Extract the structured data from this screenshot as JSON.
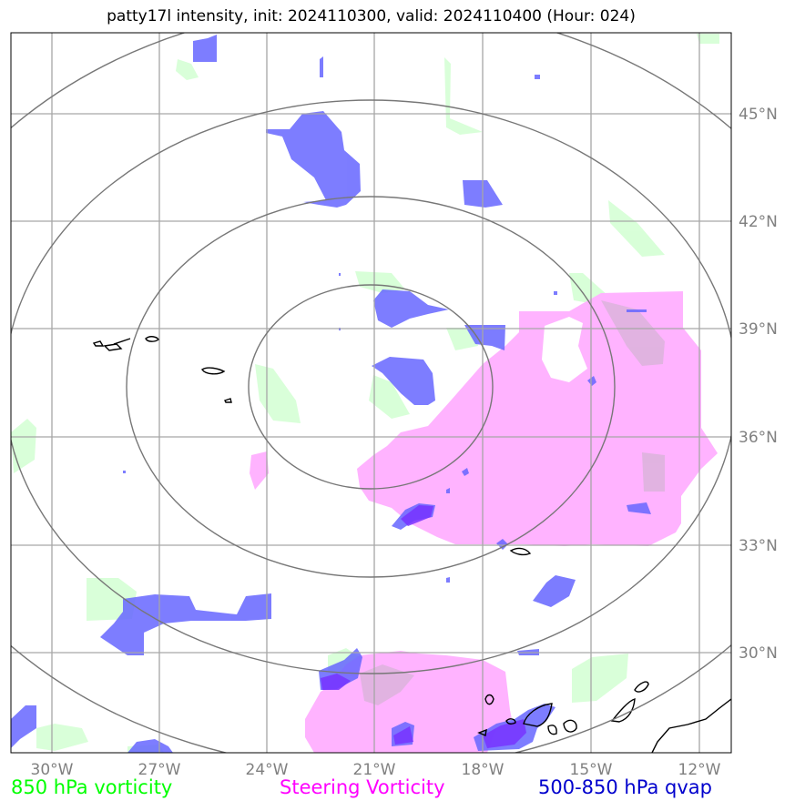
{
  "title": "patty17l intensity, init: 2024110300, valid: 2024110400 (Hour: 024)",
  "map": {
    "lon_ticks": [
      "30°W",
      "27°W",
      "24°W",
      "21°W",
      "18°W",
      "15°W",
      "12°W"
    ],
    "lat_ticks": [
      "45°N",
      "42°N",
      "39°N",
      "36°N",
      "33°N",
      "30°N"
    ],
    "center": {
      "lon": -21.0,
      "lat": 37.3
    },
    "fields": [
      {
        "name": "850 hPa vorticity",
        "color": "#ccffcc"
      },
      {
        "name": "Steering Vorticity",
        "color": "#ffb3ff"
      },
      {
        "name": "500-850 hPa qvap",
        "color": "#6666ff"
      }
    ]
  },
  "legend": {
    "green": "850 hPa vorticity",
    "magenta": "Steering Vorticity",
    "blue": "500-850 hPa qvap"
  }
}
